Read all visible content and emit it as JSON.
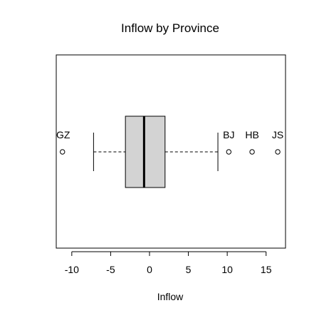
{
  "chart_data": {
    "type": "boxplot",
    "title": "Inflow by Province",
    "xlabel": "Inflow",
    "ylabel": "",
    "orientation": "horizontal",
    "xlim": [
      -12,
      17.5
    ],
    "xticks": [
      -10,
      -5,
      0,
      5,
      10,
      15
    ],
    "xtick_labels": [
      "-10",
      "-5",
      "0",
      "5",
      "10",
      "15"
    ],
    "grid": false,
    "legend": "none",
    "box": {
      "whisker_low": -7.2,
      "q1": -3.1,
      "median": -0.7,
      "q3": 2.0,
      "whisker_high": 8.8
    },
    "outliers": [
      {
        "label": "GZ",
        "value": -11.2
      },
      {
        "label": "BJ",
        "value": 10.2
      },
      {
        "label": "HB",
        "value": 13.2
      },
      {
        "label": "JS",
        "value": 16.5
      }
    ],
    "colors": {
      "box_fill": "#d3d3d3",
      "stroke": "#000000",
      "background": "#ffffff"
    }
  }
}
